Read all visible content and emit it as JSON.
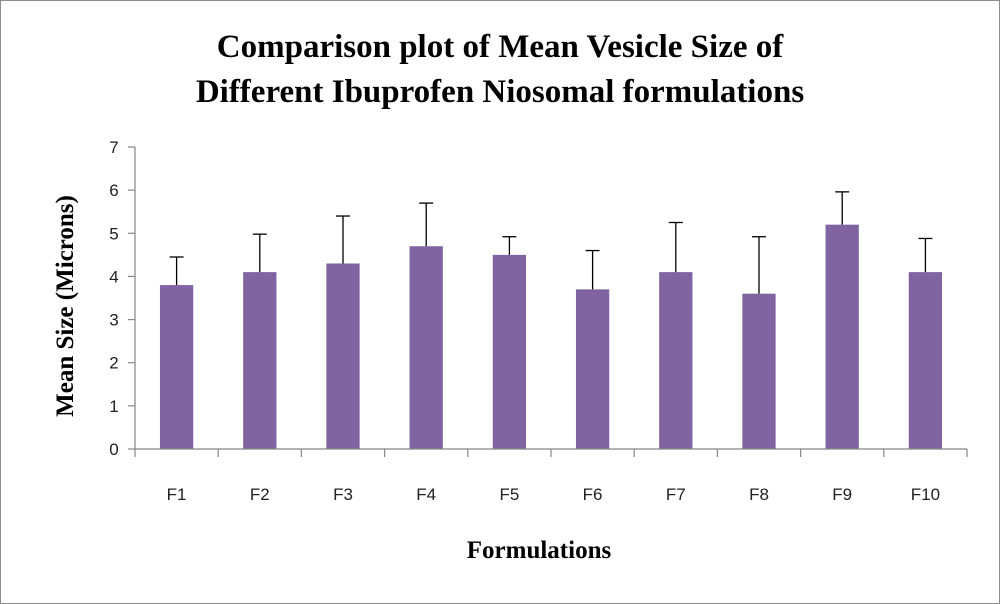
{
  "chart_data": {
    "type": "bar",
    "title": "Comparison plot of Mean Vesicle Size of",
    "subtitle": "Different Ibuprofen Niosomal formulations",
    "xlabel": "Formulations",
    "ylabel": "Mean Size (Microns)",
    "categories": [
      "F1",
      "F2",
      "F3",
      "F4",
      "F5",
      "F6",
      "F7",
      "F8",
      "F9",
      "F10"
    ],
    "values": [
      3.8,
      4.1,
      4.3,
      4.7,
      4.5,
      3.7,
      4.1,
      3.6,
      5.2,
      4.1
    ],
    "error_upper": [
      0.65,
      0.88,
      1.1,
      1.0,
      0.42,
      0.9,
      1.15,
      1.32,
      0.76,
      0.78
    ],
    "ylim": [
      0,
      7
    ],
    "yticks": [
      0,
      1,
      2,
      3,
      4,
      5,
      6,
      7
    ],
    "grid": false,
    "legend": "none",
    "bar_color": "#8064A2",
    "axis_color": "#868686"
  }
}
